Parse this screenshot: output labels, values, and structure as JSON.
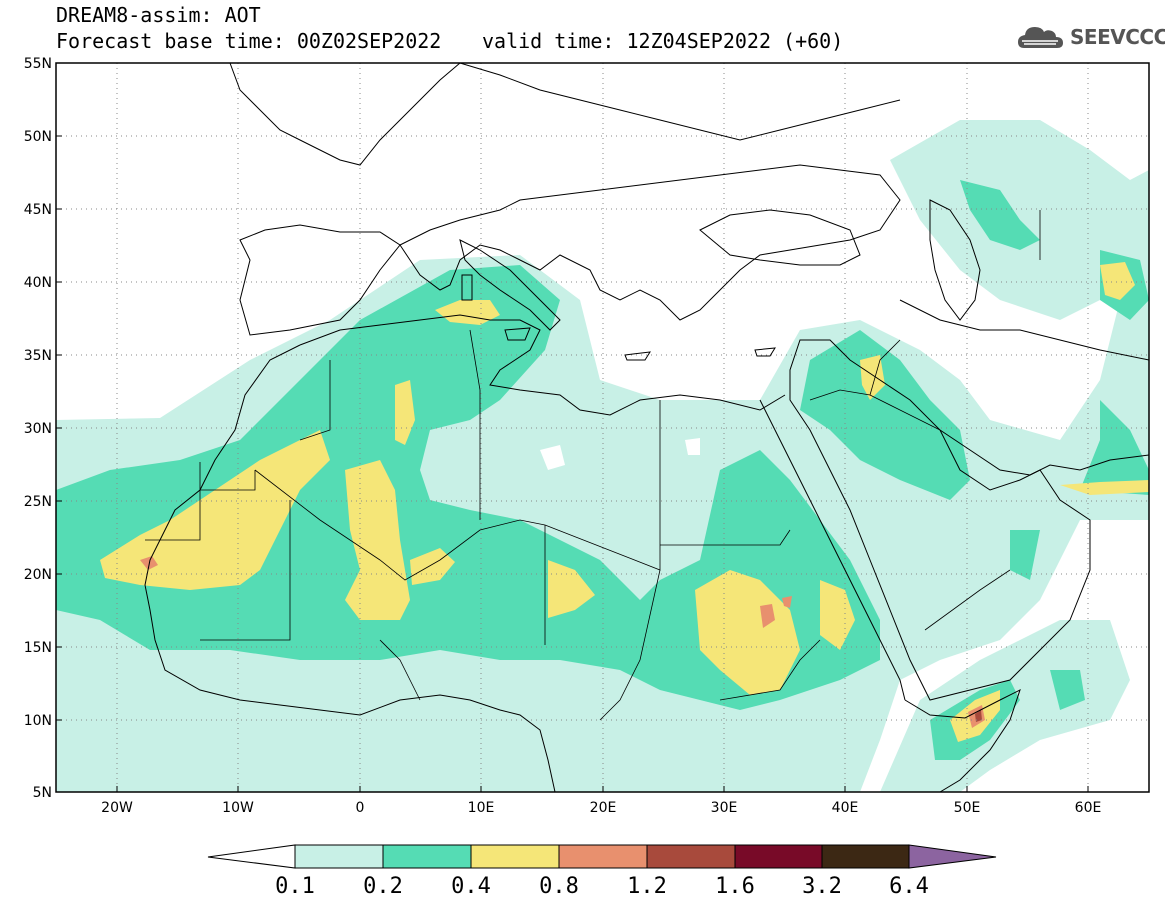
{
  "header": {
    "title_line1": "DREAM8-assim: AOT",
    "title_line2": "Forecast base time: 00Z02SEP2022",
    "valid_time": "valid time: 12Z04SEP2022 (+60)"
  },
  "logo": {
    "text": "SEEVCCC",
    "icon": "cloud-icon"
  },
  "map": {
    "lat_labels": [
      "55N",
      "50N",
      "45N",
      "40N",
      "35N",
      "30N",
      "25N",
      "20N",
      "15N",
      "10N",
      "5N"
    ],
    "lon_labels": [
      "20W",
      "10W",
      "0",
      "10E",
      "20E",
      "30E",
      "40E",
      "50E",
      "60E"
    ]
  },
  "colorbar": {
    "levels": [
      "0.1",
      "0.2",
      "0.4",
      "0.8",
      "1.2",
      "1.6",
      "3.2",
      "6.4"
    ],
    "colors": [
      "#ffffff",
      "#c8f0e6",
      "#55dcb4",
      "#f5e678",
      "#e8906e",
      "#a84a3c",
      "#780a28",
      "#3c2814",
      "#8c64a0"
    ]
  }
}
